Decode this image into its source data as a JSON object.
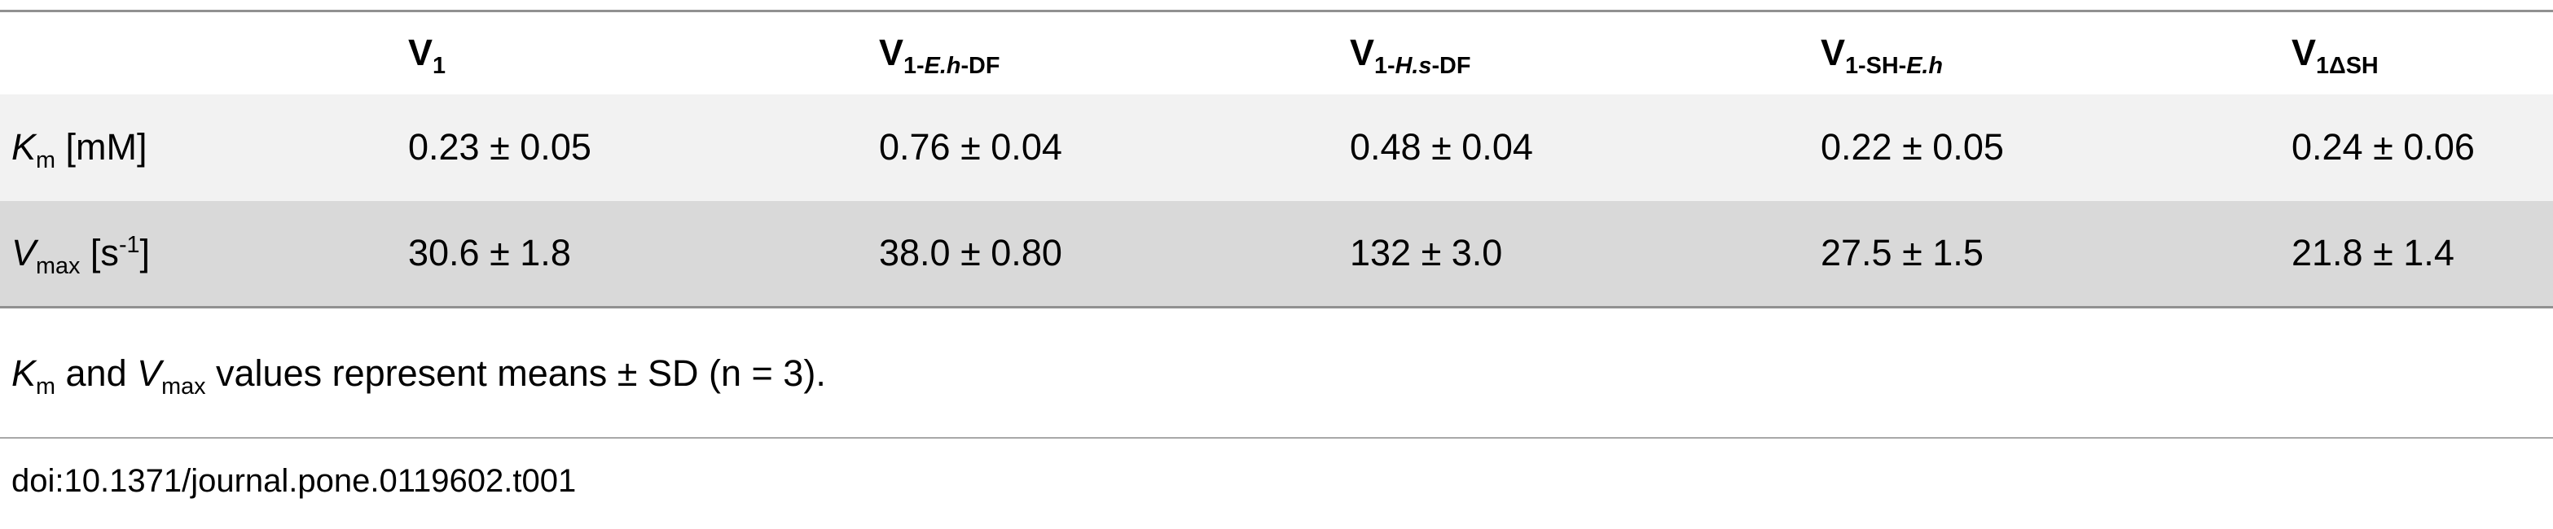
{
  "colors": {
    "row_light": "#f2f2f2",
    "row_dark": "#d9d9d9",
    "rule": "#919191"
  },
  "table": {
    "header": {
      "col0": "",
      "cols_html": [
        "V<sub>1</sub>",
        "V<sub>1-<i>E.h</i>-DF</sub>",
        "V<sub>1-<i>H.s</i>-DF</sub>",
        "V<sub>1-SH-<i>E.h</i></sub>",
        "V<sub>1ΔSH</sub>"
      ]
    },
    "rows": [
      {
        "label_html": "<i>K</i><sub>m</sub> [mM]",
        "values": [
          "0.23 ± 0.05",
          "0.76 ± 0.04",
          "0.48 ± 0.04",
          "0.22 ± 0.05",
          "0.24 ± 0.06"
        ]
      },
      {
        "label_html": "<i>V</i><sub>max</sub> [s<sup>-1</sup>]",
        "values": [
          "30.6 ± 1.8",
          "38.0 ± 0.80",
          "132 ± 3.0",
          "27.5 ± 1.5",
          "21.8 ± 1.4"
        ]
      }
    ]
  },
  "footnote_html": "<i>K</i><sub>m</sub> and <i>V</i><sub>max</sub> values represent means ± SD (n = 3).",
  "doi": "doi:10.1371/journal.pone.0119602.t001"
}
